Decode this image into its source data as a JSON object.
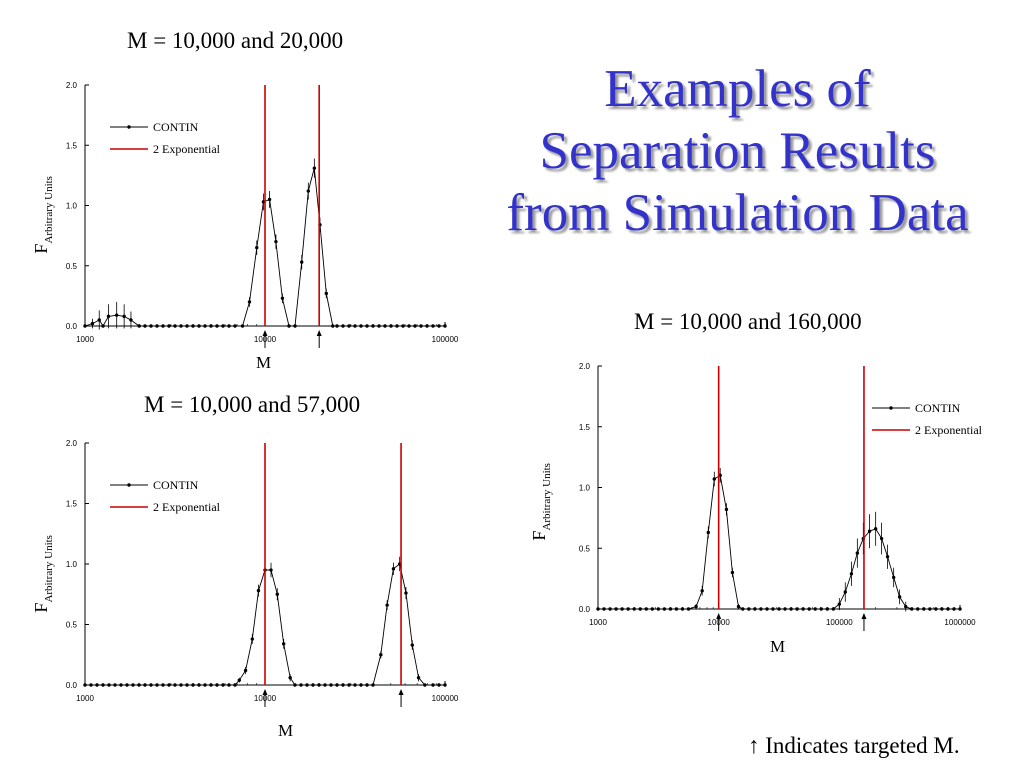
{
  "slide": {
    "title_lines": [
      "Examples of",
      "Separation Results",
      "from Simulation Data"
    ],
    "footnote_arrow": "↑",
    "footnote_text": " Indicates targeted M."
  },
  "colors": {
    "title": "#3333cc",
    "contin": "#000000",
    "exponential": "#cc0000"
  },
  "chart_data": [
    {
      "type": "line",
      "title": "M = 10,000 and 20,000",
      "xlabel": "M",
      "ylabel_main": "F",
      "ylabel_sub": "Arbitrary Units",
      "xscale": "log",
      "xlim": [
        1000,
        100000
      ],
      "ylim": [
        0,
        2.0
      ],
      "xticks": [
        1000,
        10000,
        100000
      ],
      "xtick_labels": [
        "1000",
        "10000",
        "100000"
      ],
      "yticks": [
        0,
        0.5,
        1.0,
        1.5,
        2.0
      ],
      "ytick_labels": [
        "0.0",
        "0.5",
        "1.0",
        "1.5",
        "2.0"
      ],
      "legend": {
        "position": "top-left",
        "entries": [
          "CONTIN",
          "2 Exponential"
        ]
      },
      "series": [
        {
          "name": "CONTIN",
          "x": [
            1100,
            1200,
            1350,
            1500,
            1650,
            1800,
            2000,
            7500,
            8200,
            9000,
            9800,
            10600,
            11500,
            12500,
            16000,
            17400,
            18800,
            20200,
            21900,
            23800
          ],
          "y": [
            0.02,
            0.05,
            0.08,
            0.09,
            0.08,
            0.05,
            0.0,
            0.0,
            0.2,
            0.65,
            1.03,
            1.05,
            0.7,
            0.23,
            0.53,
            1.12,
            1.31,
            0.84,
            0.27,
            0.0
          ],
          "err": [
            0.04,
            0.08,
            0.1,
            0.11,
            0.1,
            0.07,
            0.0,
            0.0,
            0.04,
            0.06,
            0.07,
            0.07,
            0.06,
            0.04,
            0.06,
            0.07,
            0.08,
            0.06,
            0.04,
            0.0
          ],
          "baseline": [
            1000,
            100000
          ]
        },
        {
          "name": "2 Exponential",
          "x": [
            10000,
            20000
          ]
        }
      ],
      "targets": [
        10000,
        20000
      ]
    },
    {
      "type": "line",
      "title": "M = 10,000 and 57,000",
      "xlabel": "M",
      "ylabel_main": "F",
      "ylabel_sub": "Arbitrary Units",
      "xscale": "log",
      "xlim": [
        1000,
        100000
      ],
      "ylim": [
        0,
        2.0
      ],
      "xticks": [
        1000,
        10000,
        100000
      ],
      "xtick_labels": [
        "1000",
        "10000",
        "100000"
      ],
      "yticks": [
        0,
        0.5,
        1.0,
        1.5,
        2.0
      ],
      "ytick_labels": [
        "0.0",
        "0.5",
        "1.0",
        "1.5",
        "2.0"
      ],
      "legend": {
        "position": "top-left",
        "entries": [
          "CONTIN",
          "2 Exponential"
        ]
      },
      "series": [
        {
          "name": "CONTIN",
          "x": [
            7200,
            7800,
            8500,
            9200,
            10000,
            10800,
            11700,
            12700,
            13800,
            44000,
            47700,
            51700,
            56000,
            60700,
            65800,
            71300,
            77300
          ],
          "y": [
            0.04,
            0.12,
            0.38,
            0.78,
            0.95,
            0.95,
            0.75,
            0.34,
            0.06,
            0.25,
            0.66,
            0.96,
            1.0,
            0.76,
            0.33,
            0.06,
            0.0
          ],
          "err": [
            0.02,
            0.03,
            0.04,
            0.05,
            0.06,
            0.06,
            0.05,
            0.04,
            0.03,
            0.03,
            0.04,
            0.05,
            0.06,
            0.05,
            0.04,
            0.03,
            0.0
          ],
          "baseline": [
            1000,
            100000
          ]
        },
        {
          "name": "2 Exponential",
          "x": [
            10000,
            57000
          ]
        }
      ],
      "targets": [
        10000,
        57000
      ]
    },
    {
      "type": "line",
      "title": "M = 10,000 and 160,000",
      "xlabel": "M",
      "ylabel_main": "F",
      "ylabel_sub": "Arbitrary Units",
      "xscale": "log",
      "xlim": [
        1000,
        1000000
      ],
      "ylim": [
        0,
        2.0
      ],
      "xticks": [
        1000,
        10000,
        100000,
        1000000
      ],
      "xtick_labels": [
        "1000",
        "10000",
        "100000",
        "1000000"
      ],
      "yticks": [
        0,
        0.5,
        1.0,
        1.5,
        2.0
      ],
      "ytick_labels": [
        "0.0",
        "0.5",
        "1.0",
        "1.5",
        "2.0"
      ],
      "legend": {
        "position": "top-right",
        "entries": [
          "CONTIN",
          "2 Exponential"
        ]
      },
      "series": [
        {
          "name": "CONTIN",
          "x": [
            6500,
            7300,
            8200,
            9200,
            10300,
            11600,
            13000,
            14600,
            100000,
            112000,
            126000,
            141000,
            158000,
            178000,
            200000,
            224000,
            251000,
            282000,
            316000,
            355000
          ],
          "y": [
            0.02,
            0.15,
            0.63,
            1.07,
            1.1,
            0.82,
            0.3,
            0.02,
            0.04,
            0.14,
            0.29,
            0.46,
            0.58,
            0.64,
            0.66,
            0.58,
            0.43,
            0.26,
            0.1,
            0.02
          ],
          "err": [
            0.02,
            0.04,
            0.05,
            0.06,
            0.06,
            0.05,
            0.04,
            0.02,
            0.05,
            0.08,
            0.1,
            0.12,
            0.13,
            0.14,
            0.14,
            0.13,
            0.1,
            0.08,
            0.06,
            0.04
          ],
          "baseline": [
            1000,
            1000000
          ]
        },
        {
          "name": "2 Exponential",
          "x": [
            10000,
            160000
          ]
        }
      ],
      "targets": [
        10000,
        160000
      ]
    }
  ]
}
